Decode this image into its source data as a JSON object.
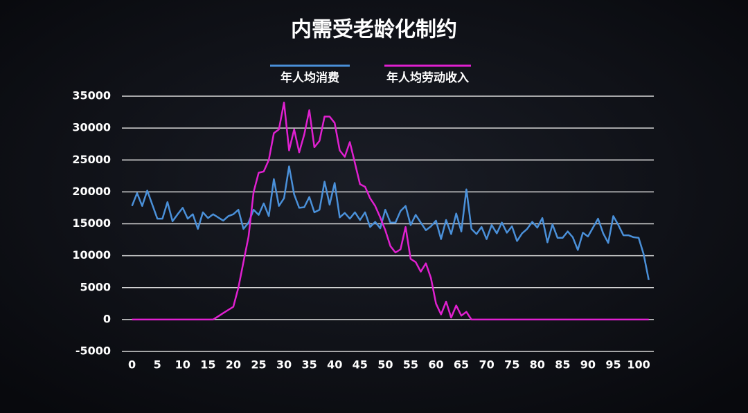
{
  "chart_data": {
    "type": "line",
    "title": "内需受老龄化制约",
    "x": [
      0,
      1,
      2,
      3,
      4,
      5,
      6,
      7,
      8,
      9,
      10,
      11,
      12,
      13,
      14,
      15,
      16,
      17,
      18,
      19,
      20,
      21,
      22,
      23,
      24,
      25,
      26,
      27,
      28,
      29,
      30,
      31,
      32,
      33,
      34,
      35,
      36,
      37,
      38,
      39,
      40,
      41,
      42,
      43,
      44,
      45,
      46,
      47,
      48,
      49,
      50,
      51,
      52,
      53,
      54,
      55,
      56,
      57,
      58,
      59,
      60,
      61,
      62,
      63,
      64,
      65,
      66,
      67,
      68,
      69,
      70,
      71,
      72,
      73,
      74,
      75,
      76,
      77,
      78,
      79,
      80,
      81,
      82,
      83,
      84,
      85,
      86,
      87,
      88,
      89,
      90,
      91,
      92,
      93,
      94,
      95,
      96,
      97,
      98,
      99,
      100,
      101,
      102
    ],
    "series": [
      {
        "name": "年人均消费",
        "color": "#4a90d9",
        "values": [
          17800,
          19800,
          17800,
          20200,
          18000,
          15800,
          15800,
          18400,
          15400,
          16500,
          17500,
          15800,
          16500,
          14200,
          16800,
          15900,
          16500,
          16000,
          15500,
          16200,
          16500,
          17200,
          14200,
          15200,
          17200,
          16400,
          18200,
          16200,
          22000,
          17800,
          19000,
          24000,
          19600,
          17500,
          17600,
          19200,
          16800,
          17200,
          21600,
          18000,
          21400,
          16000,
          16700,
          15800,
          16800,
          15600,
          16800,
          14500,
          15300,
          14300,
          17200,
          15200,
          15200,
          17000,
          17800,
          14800,
          16400,
          15200,
          14000,
          14600,
          15500,
          12600,
          15600,
          13400,
          16600,
          13800,
          20400,
          14200,
          13400,
          14500,
          12600,
          14800,
          13500,
          15200,
          13600,
          14600,
          12300,
          13500,
          14200,
          15300,
          14400,
          15900,
          12100,
          14900,
          12800,
          12800,
          13800,
          12900,
          10900,
          13600,
          13000,
          14400,
          15800,
          13500,
          12000,
          16200,
          14800,
          13200,
          13200,
          12900,
          12800,
          10200,
          6200
        ]
      },
      {
        "name": "年人均劳动收入",
        "color": "#e020d0",
        "values": [
          0,
          0,
          0,
          0,
          0,
          0,
          0,
          0,
          0,
          0,
          0,
          0,
          0,
          0,
          0,
          0,
          0,
          500,
          1000,
          1500,
          2000,
          5000,
          9000,
          13000,
          20000,
          23000,
          23200,
          25000,
          29200,
          29800,
          34000,
          26500,
          29800,
          26200,
          29000,
          32800,
          27000,
          28000,
          31800,
          31800,
          30800,
          26500,
          25500,
          27800,
          24500,
          21200,
          20800,
          19000,
          17800,
          16000,
          14000,
          11500,
          10500,
          11000,
          14500,
          9500,
          9000,
          7500,
          8800,
          6500,
          2500,
          800,
          2800,
          300,
          2200,
          600,
          1200,
          0,
          0,
          0,
          0,
          0,
          0,
          0,
          0,
          0,
          0,
          0,
          0,
          0,
          0,
          0,
          0,
          0,
          0,
          0,
          0,
          0,
          0,
          0,
          0,
          0,
          0,
          0,
          0,
          0,
          0,
          0,
          0,
          0,
          0,
          0,
          0
        ]
      }
    ],
    "xlim": [
      -2,
      103
    ],
    "xticks": [
      0,
      5,
      10,
      15,
      20,
      25,
      30,
      35,
      40,
      45,
      50,
      55,
      60,
      65,
      70,
      75,
      80,
      85,
      90,
      95,
      100
    ],
    "ylim": [
      -5000,
      35000
    ],
    "yticks": [
      -5000,
      0,
      5000,
      10000,
      15000,
      20000,
      25000,
      30000,
      35000
    ],
    "grid": true,
    "legend": "top"
  }
}
